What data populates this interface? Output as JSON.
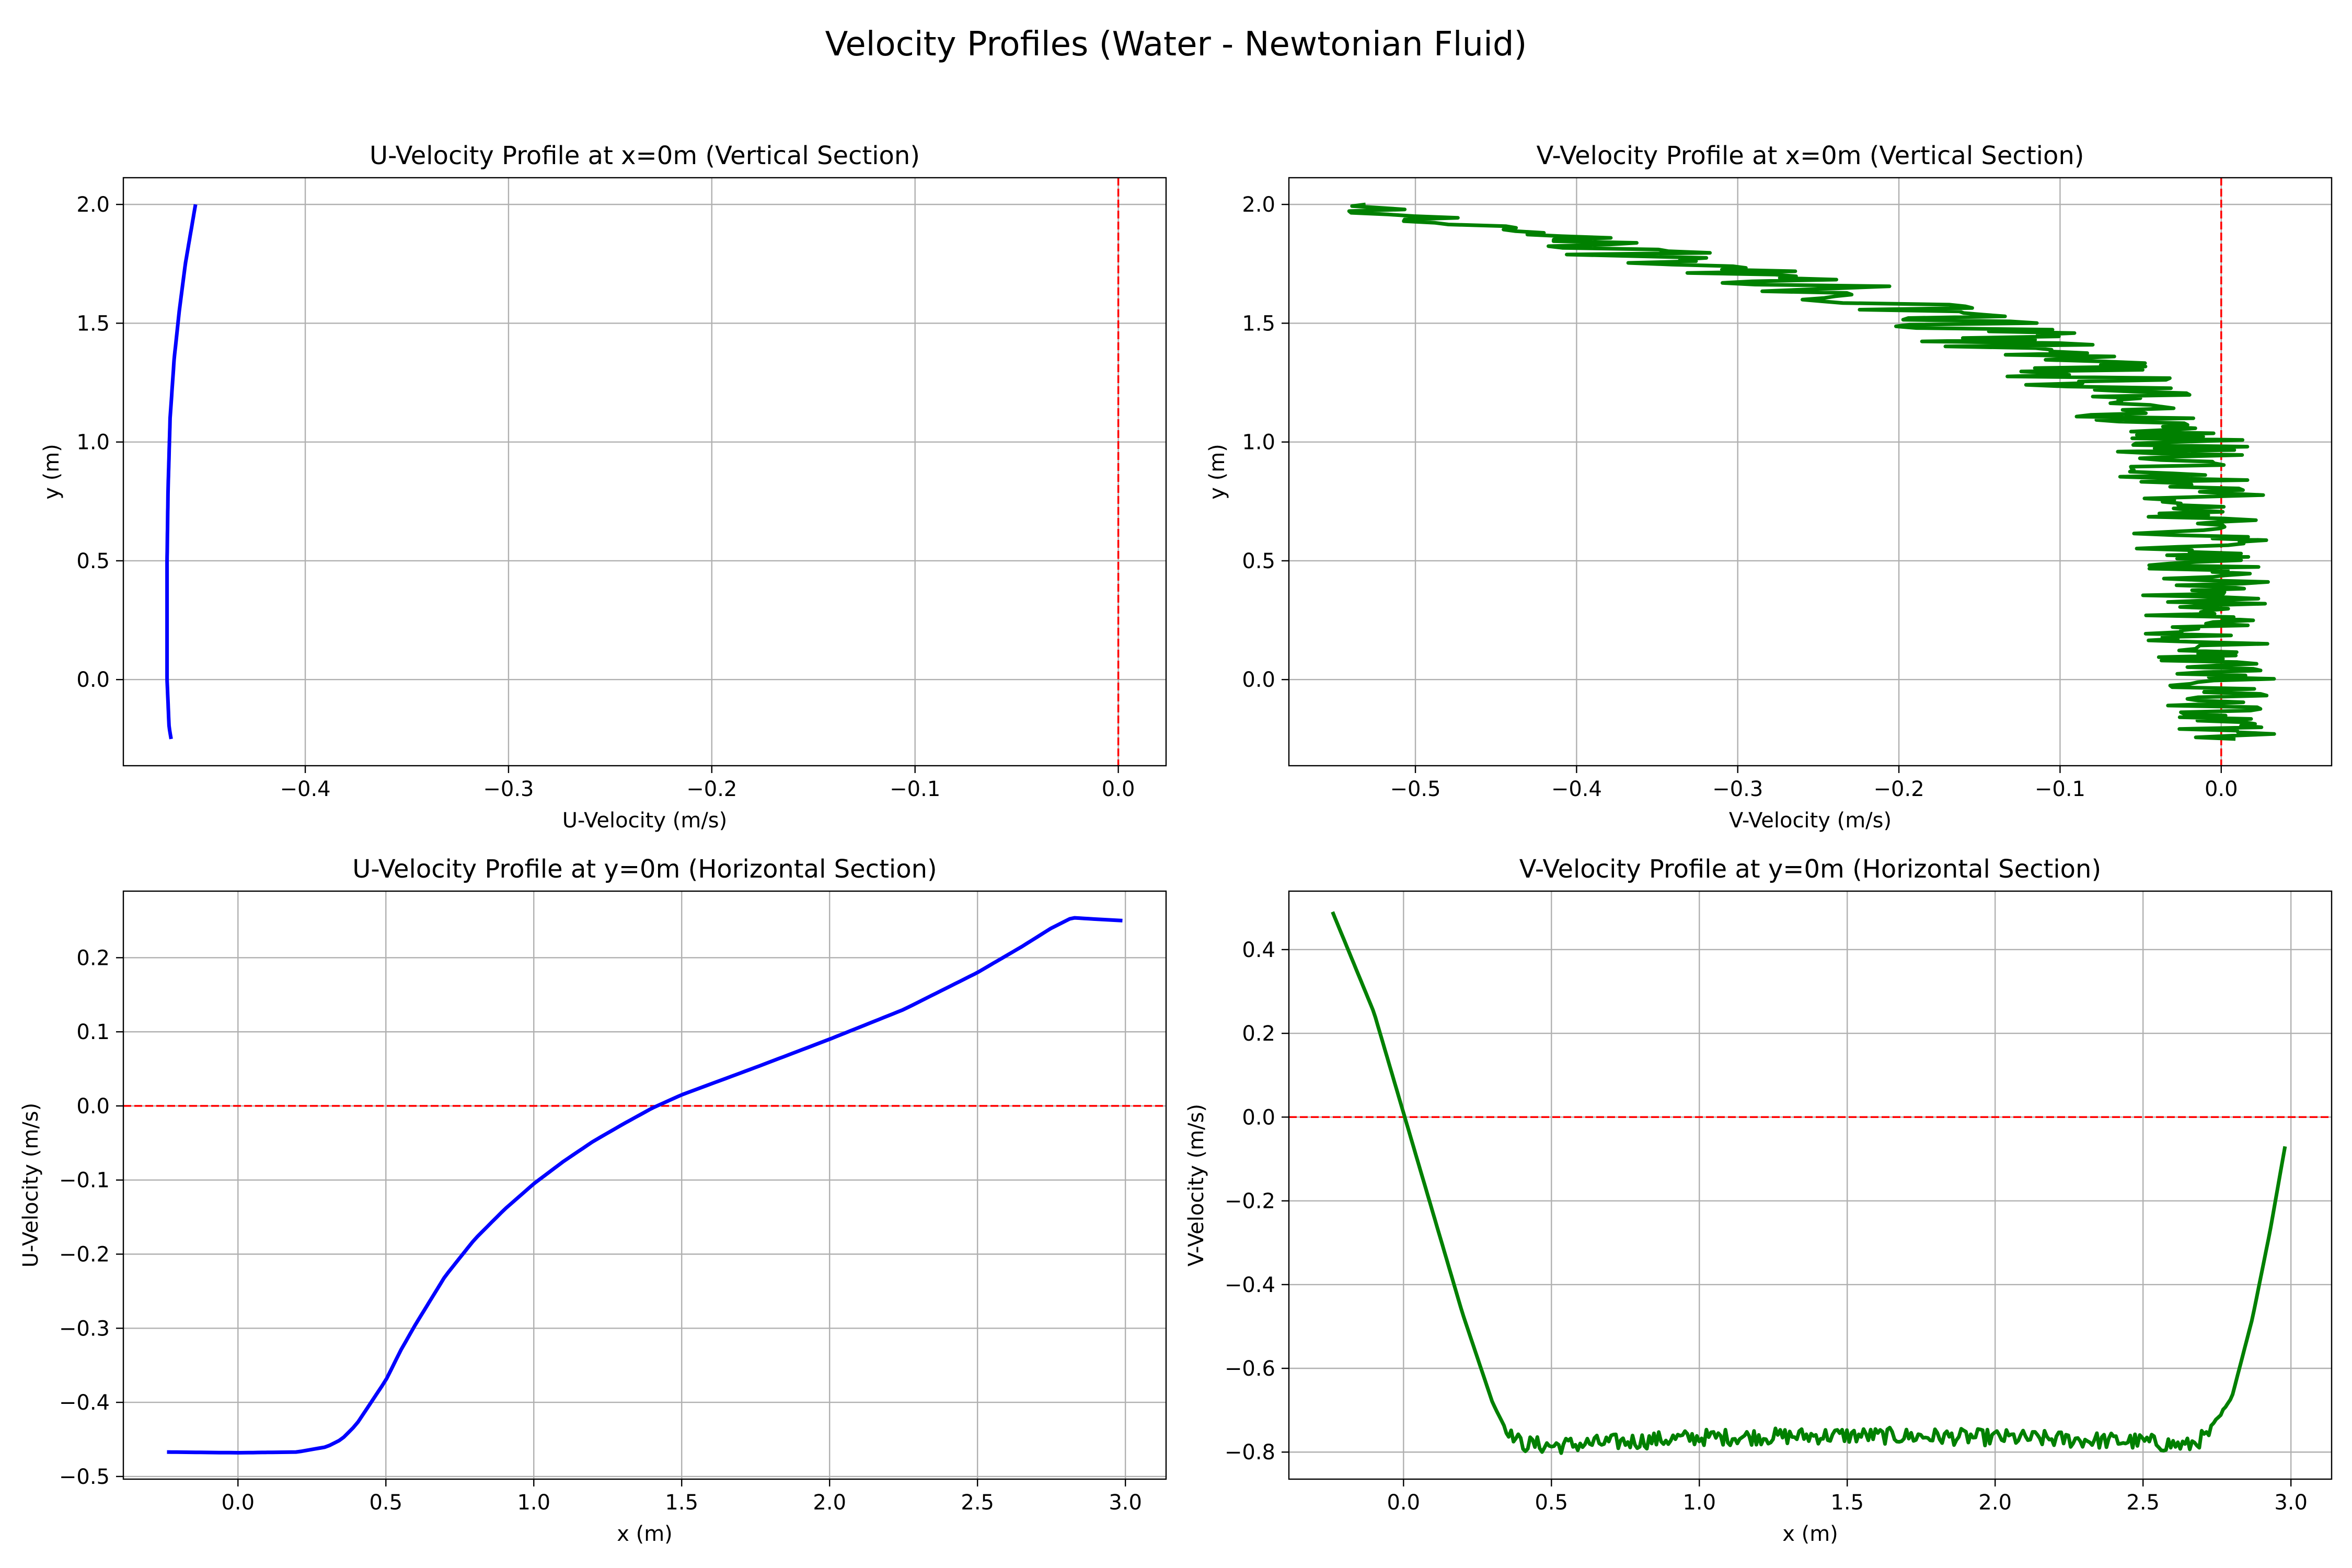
{
  "figure": {
    "suptitle": "Velocity Profiles (Water - Newtonian Fluid)"
  },
  "colors": {
    "u_series": "#0000ff",
    "v_series": "#008000",
    "reference_line": "#ff0000",
    "grid": "#b0b0b0"
  },
  "chart_data": [
    {
      "type": "line",
      "title": "U-Velocity Profile at x=0m (Vertical Section)",
      "xlabel": "U-Velocity (m/s)",
      "ylabel": "y (m)",
      "xlim": [
        -0.4895,
        0.0235
      ],
      "ylim": [
        -0.3625,
        2.1125
      ],
      "xticks": [
        -0.4,
        -0.3,
        -0.2,
        -0.1,
        0.0
      ],
      "xtick_labels": [
        "−0.4",
        "−0.3",
        "−0.2",
        "−0.1",
        "0.0"
      ],
      "yticks": [
        0.0,
        0.5,
        1.0,
        1.5,
        2.0
      ],
      "ytick_labels": [
        "0.0",
        "0.5",
        "1.0",
        "1.5",
        "2.0"
      ],
      "grid": true,
      "reference_line": {
        "orientation": "vertical",
        "value": 0.0,
        "style": "dashed"
      },
      "series": [
        {
          "color": "#0000ff",
          "orientation": "vertical",
          "points": [
            [
              -0.466,
              -0.25
            ],
            [
              -0.467,
              -0.2
            ],
            [
              -0.4675,
              -0.1
            ],
            [
              -0.468,
              0.0
            ],
            [
              -0.468,
              0.2
            ],
            [
              -0.468,
              0.5
            ],
            [
              -0.4675,
              0.8
            ],
            [
              -0.4665,
              1.1
            ],
            [
              -0.4645,
              1.35
            ],
            [
              -0.462,
              1.55
            ],
            [
              -0.459,
              1.75
            ],
            [
              -0.456,
              1.9
            ],
            [
              -0.454,
              2.0
            ]
          ]
        }
      ]
    },
    {
      "type": "line",
      "title": "V-Velocity Profile at x=0m (Vertical Section)",
      "xlabel": "V-Velocity (m/s)",
      "ylabel": "y (m)",
      "xlim": [
        -0.5785,
        0.0685
      ],
      "ylim": [
        -0.3625,
        2.1125
      ],
      "xticks": [
        -0.5,
        -0.4,
        -0.3,
        -0.2,
        -0.1,
        0.0
      ],
      "xtick_labels": [
        "−0.5",
        "−0.4",
        "−0.3",
        "−0.2",
        "−0.1",
        "0.0"
      ],
      "yticks": [
        0.0,
        0.5,
        1.0,
        1.5,
        2.0
      ],
      "ytick_labels": [
        "0.0",
        "0.5",
        "1.0",
        "1.5",
        "2.0"
      ],
      "grid": true,
      "reference_line": {
        "orientation": "vertical",
        "value": 0.0,
        "style": "dashed"
      },
      "series": [
        {
          "color": "#008000",
          "orientation": "vertical",
          "noisy": true,
          "points": [
            [
              -0.002,
              -0.25
            ],
            [
              -0.005,
              0.0
            ],
            [
              -0.008,
              0.25
            ],
            [
              -0.012,
              0.5
            ],
            [
              -0.015,
              0.8
            ],
            [
              -0.03,
              1.0
            ],
            [
              -0.05,
              1.15
            ],
            [
              -0.09,
              1.3
            ],
            [
              -0.14,
              1.45
            ],
            [
              -0.2,
              1.58
            ],
            [
              -0.28,
              1.7
            ],
            [
              -0.37,
              1.8
            ],
            [
              -0.45,
              1.9
            ],
            [
              -0.55,
              2.0
            ]
          ],
          "noise_envelope": [
            [
              -0.25,
              0.035
            ],
            [
              0.0,
              0.04
            ],
            [
              0.5,
              0.04
            ],
            [
              0.9,
              0.045
            ],
            [
              1.2,
              0.05
            ],
            [
              1.5,
              0.06
            ],
            [
              1.8,
              0.05
            ],
            [
              2.0,
              0.02
            ]
          ]
        }
      ]
    },
    {
      "type": "line",
      "title": "U-Velocity Profile at y=0m (Horizontal Section)",
      "xlabel": "x (m)",
      "ylabel": "U-Velocity (m/s)",
      "xlim": [
        -0.3875,
        3.1375
      ],
      "ylim": [
        -0.5036,
        0.2898
      ],
      "xticks": [
        0.0,
        0.5,
        1.0,
        1.5,
        2.0,
        2.5,
        3.0
      ],
      "xtick_labels": [
        "0.0",
        "0.5",
        "1.0",
        "1.5",
        "2.0",
        "2.5",
        "3.0"
      ],
      "yticks": [
        -0.5,
        -0.4,
        -0.3,
        -0.2,
        -0.1,
        0.0,
        0.1,
        0.2
      ],
      "ytick_labels": [
        "−0.5",
        "−0.4",
        "−0.3",
        "−0.2",
        "−0.1",
        "0.0",
        "0.1",
        "0.2"
      ],
      "grid": true,
      "reference_line": {
        "orientation": "horizontal",
        "value": 0.0,
        "style": "dashed"
      },
      "series": [
        {
          "color": "#0000ff",
          "orientation": "horizontal",
          "points": [
            [
              -0.24,
              -0.467
            ],
            [
              0.0,
              -0.468
            ],
            [
              0.2,
              -0.467
            ],
            [
              0.3,
              -0.46
            ],
            [
              0.35,
              -0.45
            ],
            [
              0.4,
              -0.43
            ],
            [
              0.45,
              -0.4
            ],
            [
              0.5,
              -0.37
            ],
            [
              0.55,
              -0.33
            ],
            [
              0.6,
              -0.295
            ],
            [
              0.7,
              -0.23
            ],
            [
              0.8,
              -0.18
            ],
            [
              0.9,
              -0.14
            ],
            [
              1.0,
              -0.105
            ],
            [
              1.1,
              -0.075
            ],
            [
              1.2,
              -0.048
            ],
            [
              1.3,
              -0.025
            ],
            [
              1.4,
              -0.003
            ],
            [
              1.5,
              0.015
            ],
            [
              1.75,
              0.052
            ],
            [
              2.0,
              0.09
            ],
            [
              2.25,
              0.13
            ],
            [
              2.5,
              0.18
            ],
            [
              2.65,
              0.215
            ],
            [
              2.75,
              0.24
            ],
            [
              2.82,
              0.254
            ],
            [
              2.9,
              0.252
            ],
            [
              2.99,
              0.25
            ]
          ]
        }
      ]
    },
    {
      "type": "line",
      "title": "V-Velocity Profile at y=0m (Horizontal Section)",
      "xlabel": "x (m)",
      "ylabel": "V-Velocity (m/s)",
      "xlim": [
        -0.3875,
        3.1375
      ],
      "ylim": [
        -0.8646,
        0.5396
      ],
      "xticks": [
        0.0,
        0.5,
        1.0,
        1.5,
        2.0,
        2.5,
        3.0
      ],
      "xtick_labels": [
        "0.0",
        "0.5",
        "1.0",
        "1.5",
        "2.0",
        "2.5",
        "3.0"
      ],
      "yticks": [
        -0.8,
        -0.6,
        -0.4,
        -0.2,
        0.0,
        0.2,
        0.4
      ],
      "ytick_labels": [
        "−0.8",
        "−0.6",
        "−0.4",
        "−0.2",
        "0.0",
        "0.2",
        "0.4"
      ],
      "grid": true,
      "reference_line": {
        "orientation": "horizontal",
        "value": 0.0,
        "style": "dashed"
      },
      "series": [
        {
          "color": "#008000",
          "orientation": "horizontal",
          "noisy": true,
          "points": [
            [
              -0.24,
              0.49
            ],
            [
              -0.1,
              0.25
            ],
            [
              0.0,
              0.01
            ],
            [
              0.1,
              -0.23
            ],
            [
              0.2,
              -0.47
            ],
            [
              0.3,
              -0.68
            ],
            [
              0.35,
              -0.75
            ],
            [
              0.4,
              -0.78
            ],
            [
              0.5,
              -0.785
            ],
            [
              1.0,
              -0.765
            ],
            [
              1.5,
              -0.76
            ],
            [
              2.0,
              -0.765
            ],
            [
              2.5,
              -0.775
            ],
            [
              2.65,
              -0.785
            ],
            [
              2.72,
              -0.76
            ],
            [
              2.8,
              -0.67
            ],
            [
              2.87,
              -0.48
            ],
            [
              2.93,
              -0.27
            ],
            [
              2.98,
              -0.07
            ]
          ],
          "noise_envelope": [
            [
              -0.24,
              0.0
            ],
            [
              0.3,
              0.0
            ],
            [
              0.4,
              0.02
            ],
            [
              2.7,
              0.02
            ],
            [
              2.8,
              0.0
            ],
            [
              2.99,
              0.0
            ]
          ]
        }
      ]
    }
  ]
}
